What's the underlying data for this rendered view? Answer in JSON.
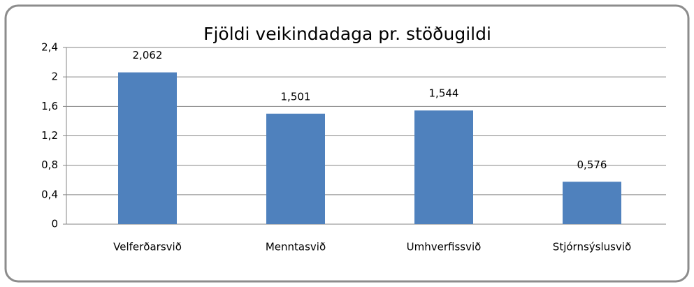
{
  "chart_data": {
    "type": "bar",
    "title": "Fjöldi veikindadaga pr. stöðugildi",
    "categories": [
      "Velferðarsvið",
      "Menntasvið",
      "Umhverfissvið",
      "Stjórnsýslusvið"
    ],
    "values": [
      2.062,
      1.501,
      1.544,
      0.576
    ],
    "value_labels": [
      "2,062",
      "1,501",
      "1,544",
      "0,576"
    ],
    "color": "#4f81bd",
    "ylim": [
      0,
      2.4
    ],
    "yticks": [
      0,
      {
        "value": 0.4,
        "label": "0,4"
      },
      {
        "value": 0.8,
        "label": "0,8"
      },
      {
        "value": 1.2,
        "label": "1,2"
      },
      {
        "value": 1.6,
        "label": "1,6"
      },
      2,
      {
        "value": 2.4,
        "label": "2,4"
      }
    ],
    "grid": true
  }
}
